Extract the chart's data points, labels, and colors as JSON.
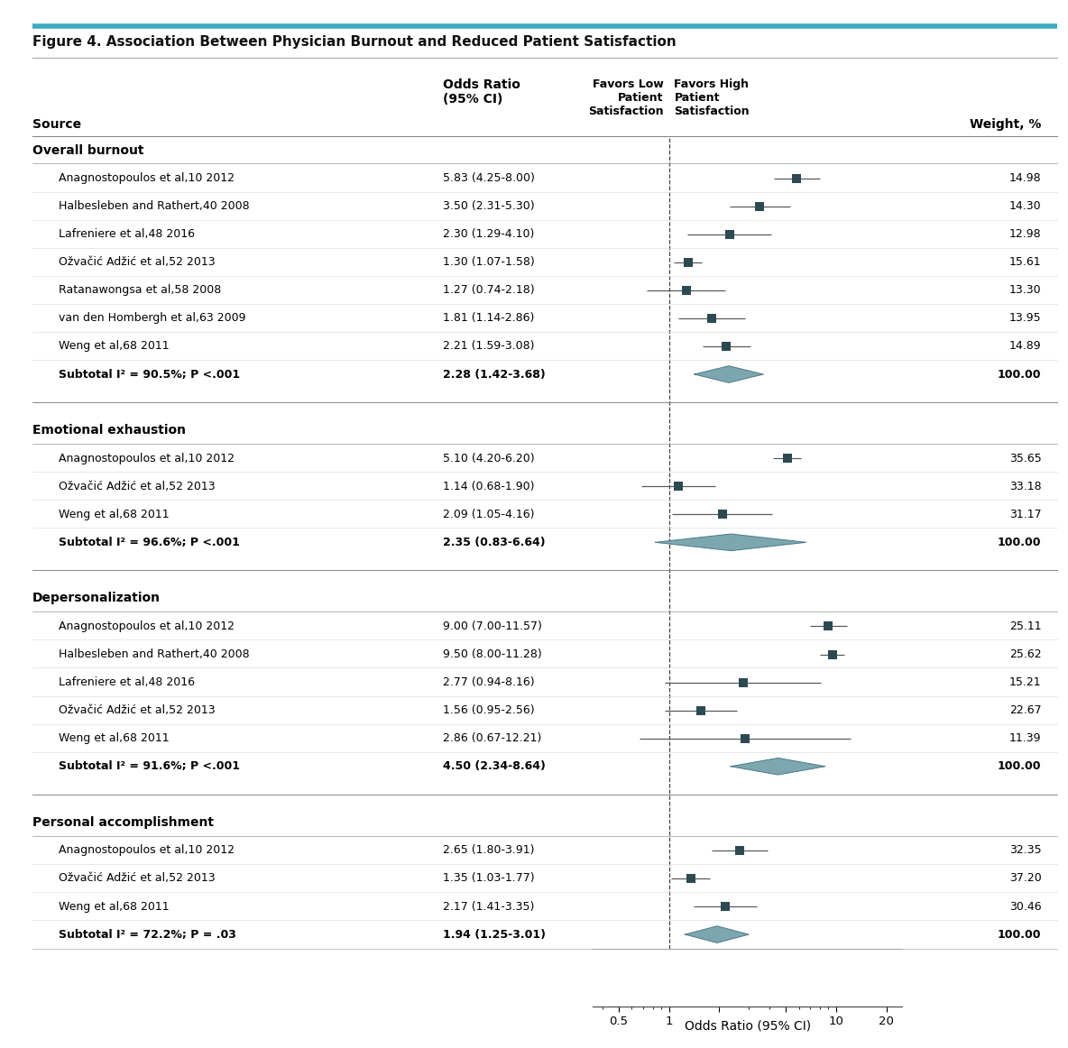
{
  "title": "Figure 4. Association Between Physician Burnout and Reduced Patient Satisfaction",
  "fig_width": 11.84,
  "fig_height": 11.62,
  "groups": [
    {
      "name": "Overall burnout",
      "studies": [
        {
          "label": "Anagnostopoulos et al,",
          "superscript": "10",
          "year": " 2012",
          "or": 5.83,
          "ci_low": 4.25,
          "ci_high": 8.0,
          "weight": "14.98",
          "or_text": "5.83 (4.25-8.00)",
          "is_subtotal": false
        },
        {
          "label": "Halbesleben and Rathert,",
          "superscript": "40",
          "year": " 2008",
          "or": 3.5,
          "ci_low": 2.31,
          "ci_high": 5.3,
          "weight": "14.30",
          "or_text": "3.50 (2.31-5.30)",
          "is_subtotal": false
        },
        {
          "label": "Lafreniere et al,",
          "superscript": "48",
          "year": " 2016",
          "or": 2.3,
          "ci_low": 1.29,
          "ci_high": 4.1,
          "weight": "12.98",
          "or_text": "2.30 (1.29-4.10)",
          "is_subtotal": false
        },
        {
          "label": "Ožvačić Adžić et al,",
          "superscript": "52",
          "year": " 2013",
          "or": 1.3,
          "ci_low": 1.07,
          "ci_high": 1.58,
          "weight": "15.61",
          "or_text": "1.30 (1.07-1.58)",
          "is_subtotal": false
        },
        {
          "label": "Ratanawongsa et al,",
          "superscript": "58",
          "year": " 2008",
          "or": 1.27,
          "ci_low": 0.74,
          "ci_high": 2.18,
          "weight": "13.30",
          "or_text": "1.27 (0.74-2.18)",
          "is_subtotal": false
        },
        {
          "label": "van den Hombergh et al,",
          "superscript": "63",
          "year": " 2009",
          "or": 1.81,
          "ci_low": 1.14,
          "ci_high": 2.86,
          "weight": "13.95",
          "or_text": "1.81 (1.14-2.86)",
          "is_subtotal": false
        },
        {
          "label": "Weng et al,",
          "superscript": "68",
          "year": " 2011",
          "or": 2.21,
          "ci_low": 1.59,
          "ci_high": 3.08,
          "weight": "14.89",
          "or_text": "2.21 (1.59-3.08)",
          "is_subtotal": false
        },
        {
          "label": "Subtotal I² = 90.5%; P <.001",
          "superscript": "",
          "year": "",
          "or": 2.28,
          "ci_low": 1.42,
          "ci_high": 3.68,
          "weight": "100.00",
          "or_text": "2.28 (1.42-3.68)",
          "is_subtotal": true
        }
      ]
    },
    {
      "name": "Emotional exhaustion",
      "studies": [
        {
          "label": "Anagnostopoulos et al,",
          "superscript": "10",
          "year": " 2012",
          "or": 5.1,
          "ci_low": 4.2,
          "ci_high": 6.2,
          "weight": "35.65",
          "or_text": "5.10 (4.20-6.20)",
          "is_subtotal": false
        },
        {
          "label": "Ožvačić Adžić et al,",
          "superscript": "52",
          "year": " 2013",
          "or": 1.14,
          "ci_low": 0.68,
          "ci_high": 1.9,
          "weight": "33.18",
          "or_text": "1.14 (0.68-1.90)",
          "is_subtotal": false
        },
        {
          "label": "Weng et al,",
          "superscript": "68",
          "year": " 2011",
          "or": 2.09,
          "ci_low": 1.05,
          "ci_high": 4.16,
          "weight": "31.17",
          "or_text": "2.09 (1.05-4.16)",
          "is_subtotal": false
        },
        {
          "label": "Subtotal I² = 96.6%; P <.001",
          "superscript": "",
          "year": "",
          "or": 2.35,
          "ci_low": 0.83,
          "ci_high": 6.64,
          "weight": "100.00",
          "or_text": "2.35 (0.83-6.64)",
          "is_subtotal": true
        }
      ]
    },
    {
      "name": "Depersonalization",
      "studies": [
        {
          "label": "Anagnostopoulos et al,",
          "superscript": "10",
          "year": " 2012",
          "or": 9.0,
          "ci_low": 7.0,
          "ci_high": 11.57,
          "weight": "25.11",
          "or_text": "9.00 (7.00-11.57)",
          "is_subtotal": false
        },
        {
          "label": "Halbesleben and Rathert,",
          "superscript": "40",
          "year": " 2008",
          "or": 9.5,
          "ci_low": 8.0,
          "ci_high": 11.28,
          "weight": "25.62",
          "or_text": "9.50 (8.00-11.28)",
          "is_subtotal": false
        },
        {
          "label": "Lafreniere et al,",
          "superscript": "48",
          "year": " 2016",
          "or": 2.77,
          "ci_low": 0.94,
          "ci_high": 8.16,
          "weight": "15.21",
          "or_text": "2.77 (0.94-8.16)",
          "is_subtotal": false
        },
        {
          "label": "Ožvačić Adžić et al,",
          "superscript": "52",
          "year": " 2013",
          "or": 1.56,
          "ci_low": 0.95,
          "ci_high": 2.56,
          "weight": "22.67",
          "or_text": "1.56 (0.95-2.56)",
          "is_subtotal": false
        },
        {
          "label": "Weng et al,",
          "superscript": "68",
          "year": " 2011",
          "or": 2.86,
          "ci_low": 0.67,
          "ci_high": 12.21,
          "weight": "11.39",
          "or_text": "2.86 (0.67-12.21)",
          "is_subtotal": false
        },
        {
          "label": "Subtotal I² = 91.6%; P <.001",
          "superscript": "",
          "year": "",
          "or": 4.5,
          "ci_low": 2.34,
          "ci_high": 8.64,
          "weight": "100.00",
          "or_text": "4.50 (2.34-8.64)",
          "is_subtotal": true
        }
      ]
    },
    {
      "name": "Personal accomplishment",
      "studies": [
        {
          "label": "Anagnostopoulos et al,",
          "superscript": "10",
          "year": " 2012",
          "or": 2.65,
          "ci_low": 1.8,
          "ci_high": 3.91,
          "weight": "32.35",
          "or_text": "2.65 (1.80-3.91)",
          "is_subtotal": false
        },
        {
          "label": "Ožvačić Adžić et al,",
          "superscript": "52",
          "year": " 2013",
          "or": 1.35,
          "ci_low": 1.03,
          "ci_high": 1.77,
          "weight": "37.20",
          "or_text": "1.35 (1.03-1.77)",
          "is_subtotal": false
        },
        {
          "label": "Weng et al,",
          "superscript": "68",
          "year": " 2011",
          "or": 2.17,
          "ci_low": 1.41,
          "ci_high": 3.35,
          "weight": "30.46",
          "or_text": "2.17 (1.41-3.35)",
          "is_subtotal": false
        },
        {
          "label": "Subtotal I² = 72.2%; P = .03",
          "superscript": "",
          "year": "",
          "or": 1.94,
          "ci_low": 1.25,
          "ci_high": 3.01,
          "weight": "100.00",
          "or_text": "1.94 (1.25-3.01)",
          "is_subtotal": true
        }
      ]
    }
  ],
  "square_color": "#2C4A52",
  "diamond_color": "#7DA7B0",
  "line_color": "#555555",
  "background_color": "#FFFFFF",
  "header_bar_color": "#3AACBF",
  "xlabel": "Odds Ratio (95% CI)",
  "xlim_low": 0.35,
  "xlim_high": 25.0
}
